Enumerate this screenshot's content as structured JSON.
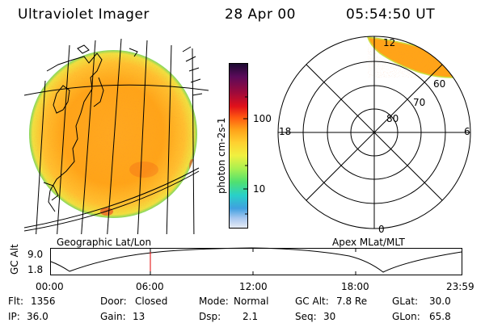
{
  "header": {
    "title": "Ultraviolet Imager",
    "date": "28 Apr 00",
    "time": "05:54:50 UT"
  },
  "colorbar": {
    "unit_label": "photon cm-2s-1",
    "ticks": [
      "100",
      "10"
    ],
    "colors": [
      "#1a0a30",
      "#5a0a5a",
      "#a00a3a",
      "#e0101a",
      "#ff5a10",
      "#ffa018",
      "#ffd030",
      "#f0f040",
      "#a8f050",
      "#50e070",
      "#28d0c8",
      "#40a0e0",
      "#a8c8f0",
      "#e8ecf4"
    ]
  },
  "geo_panel": {
    "label": "Geographic Lat/Lon"
  },
  "polar_panel": {
    "label": "Apex MLat/MLT",
    "mlt_labels": [
      "12",
      "18",
      "6",
      "0"
    ],
    "lat_labels": [
      "60",
      "70",
      "80"
    ]
  },
  "altitude_plot": {
    "y_axis_title": "GC Alt",
    "y_ticks": [
      "9.0",
      "1.8"
    ],
    "x_ticks": [
      "00:00",
      "06:00",
      "12:00",
      "18:00",
      "23:59"
    ],
    "current_marker_color": "#e00000"
  },
  "status": {
    "flt_label": "Flt:",
    "flt_value": "1356",
    "ip_label": "IP:",
    "ip_value": "36.0",
    "door_label": "Door:",
    "door_value": "Closed",
    "gain_label": "Gain:",
    "gain_value": "13",
    "mode_label": "Mode:",
    "mode_value": "Normal",
    "dsp_label": "Dsp:",
    "dsp_value": "2.1",
    "gcalt_label": "GC Alt:",
    "gcalt_value": "7.8 Re",
    "seq_label": "Seq:",
    "seq_value": "30",
    "glat_label": "GLat:",
    "glat_value": "30.0",
    "glon_label": "GLon:",
    "glon_value": "65.8"
  }
}
